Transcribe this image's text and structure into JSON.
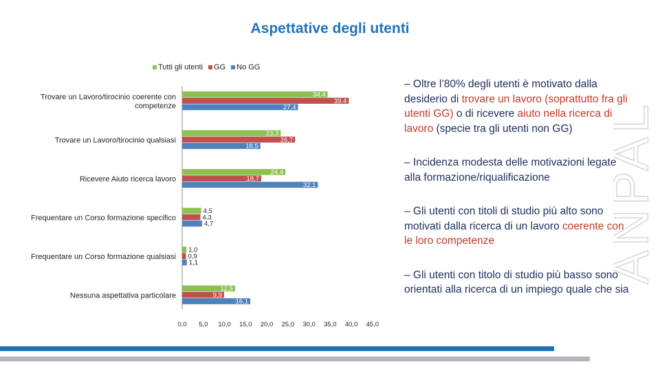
{
  "colors": {
    "tutti": "#8cc152",
    "gg": "#c0504d",
    "nogg": "#4f81bd",
    "title": "#1f73b7",
    "notes": "#1d2d5c",
    "highlight": "#c0392b"
  },
  "chart_data": {
    "type": "bar",
    "orientation": "horizontal",
    "title": "Aspettative degli utenti",
    "legend_position": "top",
    "categories": [
      "Trovare un Lavoro/tirocinio coerente con competenze",
      "Trovare un Lavoro/tirocinio qualsiasi",
      "Ricevere Aiuto ricerca lavoro",
      "Frequentare un Corso formazione specifico",
      "Frequentare un Corso formazione qualsiasi",
      "Nessuna aspettativa particolare"
    ],
    "category_lines": [
      [
        "Trovare un Lavoro/tirocinio coerente con",
        "competenze"
      ],
      [
        "Trovare un Lavoro/tirocinio qualsiasi"
      ],
      [
        "Ricevere Aiuto ricerca lavoro"
      ],
      [
        "Frequentare un Corso formazione specifico"
      ],
      [
        "Frequentare un Corso formazione qualsiasi"
      ],
      [
        "Nessuna aspettativa particolare"
      ]
    ],
    "series": [
      {
        "name": "Tutti gli utenti",
        "values": [
          34.4,
          23.3,
          24.4,
          4.5,
          1.0,
          12.5
        ],
        "labels": [
          "34.4",
          "23,3",
          "24.4",
          "4,5",
          "1,0",
          "12,5"
        ]
      },
      {
        "name": "GG",
        "values": [
          39.4,
          26.7,
          18.7,
          4.3,
          0.9,
          9.9
        ],
        "labels": [
          "39.4",
          "26,7",
          "18,7",
          "4,3",
          "0,9",
          "9,9"
        ]
      },
      {
        "name": "No GG",
        "values": [
          27.4,
          18.5,
          32.1,
          4.7,
          1.1,
          16.1
        ],
        "labels": [
          "27.4",
          "18,5",
          "32.1",
          "4,7",
          "1,1",
          "16,1"
        ]
      }
    ],
    "xlim": [
      0,
      45
    ],
    "xticks": [
      0,
      5,
      10,
      15,
      20,
      25,
      30,
      35,
      40,
      45
    ],
    "xtick_labels": [
      "0,0",
      "5,0",
      "10,0",
      "15,0",
      "20,0",
      "25,0",
      "30,0",
      "35,0",
      "40,0",
      "45,0"
    ],
    "grid": false
  },
  "notes": [
    {
      "segments": [
        {
          "text": "– Oltre l’80% degli utenti è motivato dalla desiderio di ",
          "hl": false
        },
        {
          "text": "trovare un lavoro",
          "hl": true
        },
        {
          "text": " (soprattutto fra gli utenti GG)",
          "hl": true
        },
        {
          "text": " o di ricevere ",
          "hl": false
        },
        {
          "text": "aiuto nella ricerca di lavoro",
          "hl": true
        },
        {
          "text": " (specie tra gli utenti non GG)",
          "hl": false
        }
      ]
    },
    {
      "segments": [
        {
          "text": "– Incidenza modesta delle motivazioni legate alla formazione/riqualificazione",
          "hl": false
        }
      ]
    },
    {
      "segments": [
        {
          "text": "– Gli utenti con titoli di studio più alto sono motivati dalla ricerca di un lavoro ",
          "hl": false
        },
        {
          "text": "coerente con le loro competenze",
          "hl": true
        }
      ]
    },
    {
      "segments": [
        {
          "text": "– Gli utenti con titolo di studio più basso sono orientati alla ricerca di un impiego quale che sia",
          "hl": false
        }
      ]
    }
  ],
  "watermark": "ANPAL"
}
